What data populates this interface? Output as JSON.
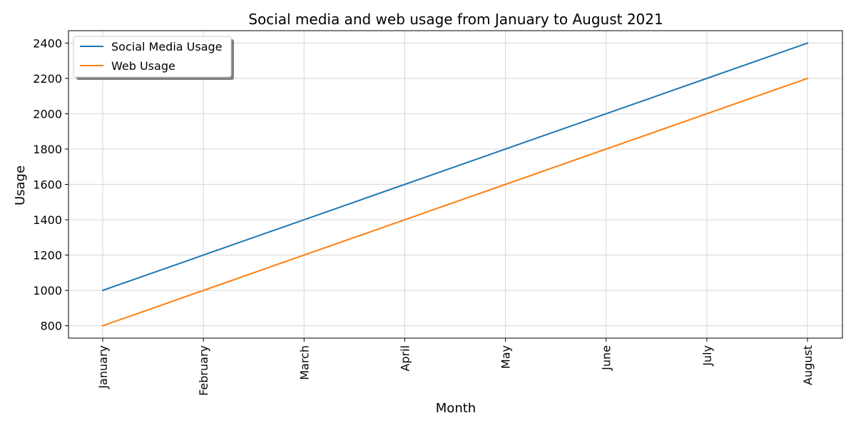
{
  "chart_data": {
    "type": "line",
    "title": "Social media and web usage from January to August 2021",
    "xlabel": "Month",
    "ylabel": "Usage",
    "categories": [
      "January",
      "February",
      "March",
      "April",
      "May",
      "June",
      "July",
      "August"
    ],
    "series": [
      {
        "name": "Social Media Usage",
        "color": "#1f77b4",
        "values": [
          1000,
          1200,
          1400,
          1600,
          1800,
          2000,
          2200,
          2400
        ]
      },
      {
        "name": "Web Usage",
        "color": "#ff7f0e",
        "values": [
          800,
          1000,
          1200,
          1400,
          1600,
          1800,
          2000,
          2200
        ]
      }
    ],
    "ylim": [
      730,
      2470
    ],
    "yticks": [
      800,
      1000,
      1200,
      1400,
      1600,
      1800,
      2000,
      2200,
      2400
    ],
    "grid": true,
    "legend_position": "top-left"
  }
}
